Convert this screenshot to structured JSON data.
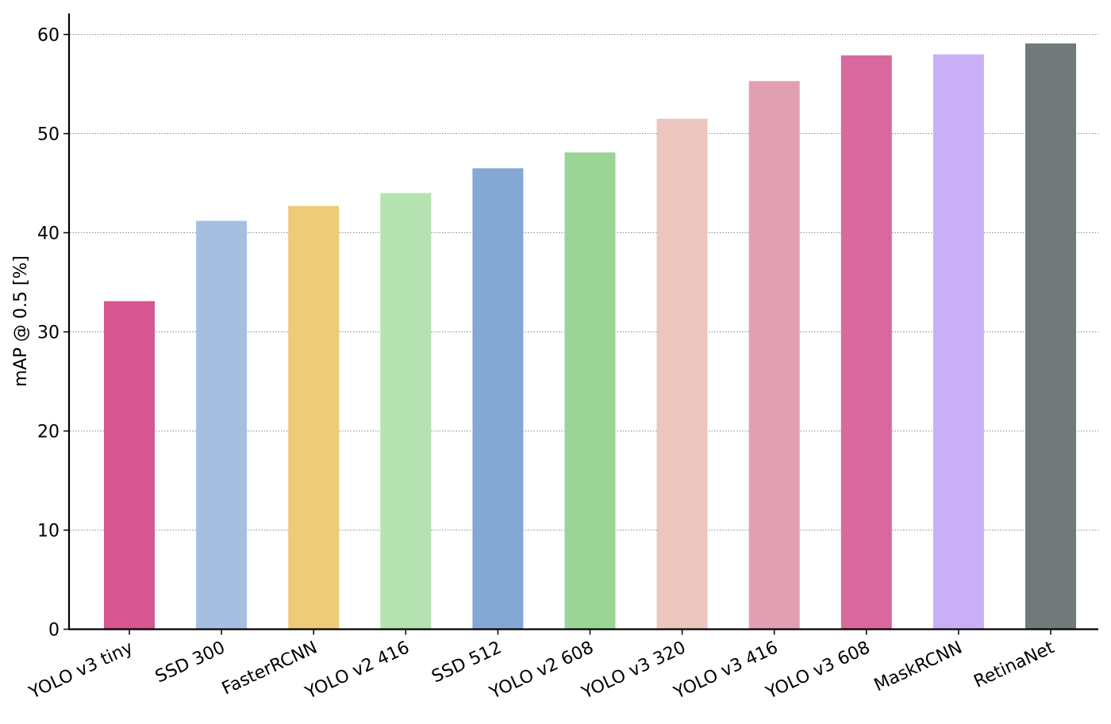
{
  "chart_data": {
    "type": "bar",
    "title": "",
    "xlabel": "",
    "ylabel": "mAP @ 0.5 [%]",
    "ylim": [
      0,
      62
    ],
    "yticks": [
      0,
      10,
      20,
      30,
      40,
      50,
      60
    ],
    "grid": "horizontal dotted",
    "categories": [
      "YOLO v3 tiny",
      "SSD 300",
      "FasterRCNN",
      "YOLO v2 416",
      "SSD 512",
      "YOLO v2 608",
      "YOLO v3 320",
      "YOLO v3 416",
      "YOLO v3 608",
      "MaskRCNN",
      "RetinaNet"
    ],
    "values": [
      33.1,
      41.2,
      42.7,
      44.0,
      46.5,
      48.1,
      51.5,
      55.3,
      57.9,
      58.0,
      59.1
    ],
    "colors": [
      "#d6568f",
      "#a6bfe0",
      "#eecb77",
      "#b4e3b1",
      "#85a7d4",
      "#9bd595",
      "#ecc5be",
      "#e39fb2",
      "#d9689c",
      "#c9b0f6",
      "#71797a"
    ]
  }
}
